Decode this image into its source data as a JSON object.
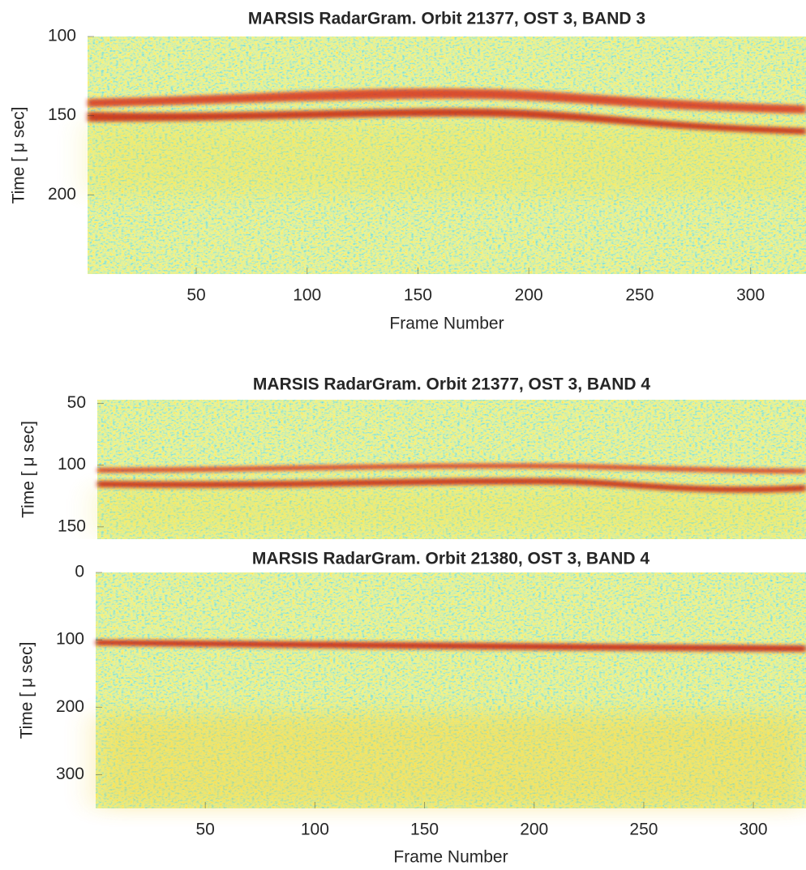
{
  "chart_data": [
    {
      "type": "radargram",
      "title": "MARSIS RadarGram. Orbit 21377, OST 3, BAND 3",
      "xlabel": "Frame Number",
      "ylabel": "Time [ μ sec]",
      "xlim": [
        1,
        325
      ],
      "xticks": [
        50,
        100,
        150,
        200,
        250,
        300
      ],
      "ylim": [
        100,
        250
      ],
      "yticks": [
        100,
        150,
        200
      ],
      "y_reversed": true
    },
    {
      "type": "radargram",
      "title": "MARSIS RadarGram. Orbit 21377, OST 3, BAND 4",
      "ylabel": "Time [ μ sec]",
      "xlim": [
        1,
        325
      ],
      "ylim": [
        47,
        160
      ],
      "yticks": [
        50,
        100,
        150
      ],
      "y_reversed": true
    },
    {
      "type": "radargram",
      "title": "MARSIS RadarGram. Orbit 21380, OST 3, BAND 4",
      "xlabel": "Frame Number",
      "ylabel": "Time [ μ sec]",
      "xlim": [
        0,
        324
      ],
      "xticks": [
        50,
        100,
        150,
        200,
        250,
        300
      ],
      "ylim": [
        0,
        350
      ],
      "yticks": [
        0,
        100,
        200,
        300
      ],
      "y_reversed": true
    }
  ]
}
